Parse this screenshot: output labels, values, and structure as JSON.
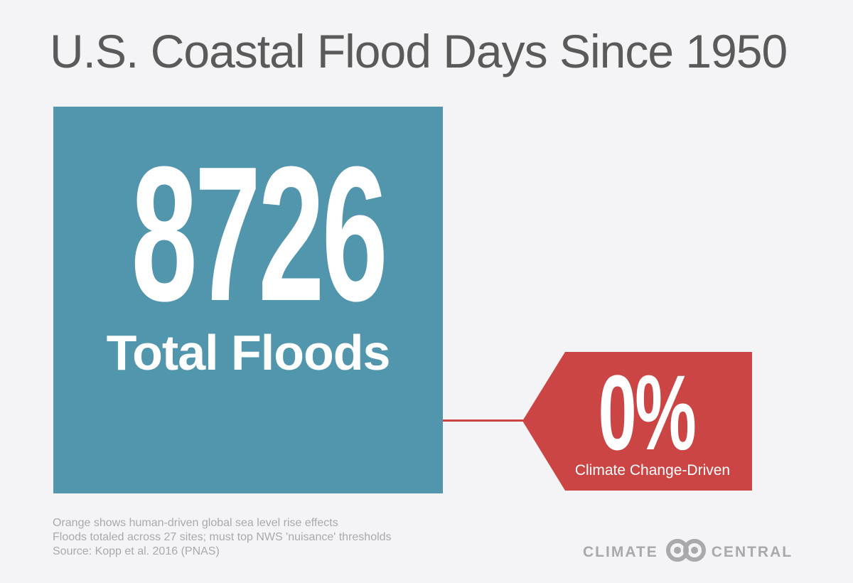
{
  "title": "U.S. Coastal Flood Days Since 1950",
  "total": {
    "value": "8726",
    "label": "Total Floods",
    "color": "#5296ad"
  },
  "climate": {
    "value": "0%",
    "label": "Climate Change-Driven",
    "color": "#cc4545"
  },
  "footnotes": [
    "Orange shows human-driven global sea level rise effects",
    "Floods totaled across 27 sites; must top NWS 'nuisance' thresholds",
    "Source: Kopp et al. 2016 (PNAS)"
  ],
  "logo": {
    "left_text": "CLIMATE",
    "right_text": "CENTRAL",
    "icon": "interlocking-rings-icon"
  }
}
